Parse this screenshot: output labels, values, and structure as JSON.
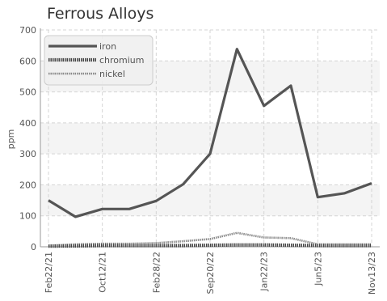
{
  "chart_data": {
    "type": "line",
    "title": "Ferrous Alloys",
    "ylabel": "ppm",
    "xlabel": "",
    "ylim": [
      0,
      700
    ],
    "y_ticks": [
      0,
      100,
      200,
      300,
      400,
      500,
      600,
      700
    ],
    "x_tick_labels": [
      "Feb22/21",
      "Oct12/21",
      "Feb28/22",
      "Sep20/22",
      "Jan22/23",
      "Jun5/23",
      "Nov13/23"
    ],
    "grid": true,
    "legend_position": "top-left",
    "series": [
      {
        "name": "iron",
        "color": "#555555",
        "values": [
          150,
          97,
          122,
          122,
          148,
          202,
          300,
          638,
          455,
          520,
          160,
          173,
          205
        ]
      },
      {
        "name": "chromium",
        "color": "#444444",
        "values": [
          2,
          3,
          4,
          4,
          4,
          4,
          5,
          6,
          6,
          5,
          4,
          4,
          4
        ]
      },
      {
        "name": "nickel",
        "color": "#888888",
        "values": [
          4,
          8,
          10,
          10,
          12,
          18,
          25,
          45,
          30,
          28,
          8,
          8,
          8
        ]
      }
    ]
  }
}
